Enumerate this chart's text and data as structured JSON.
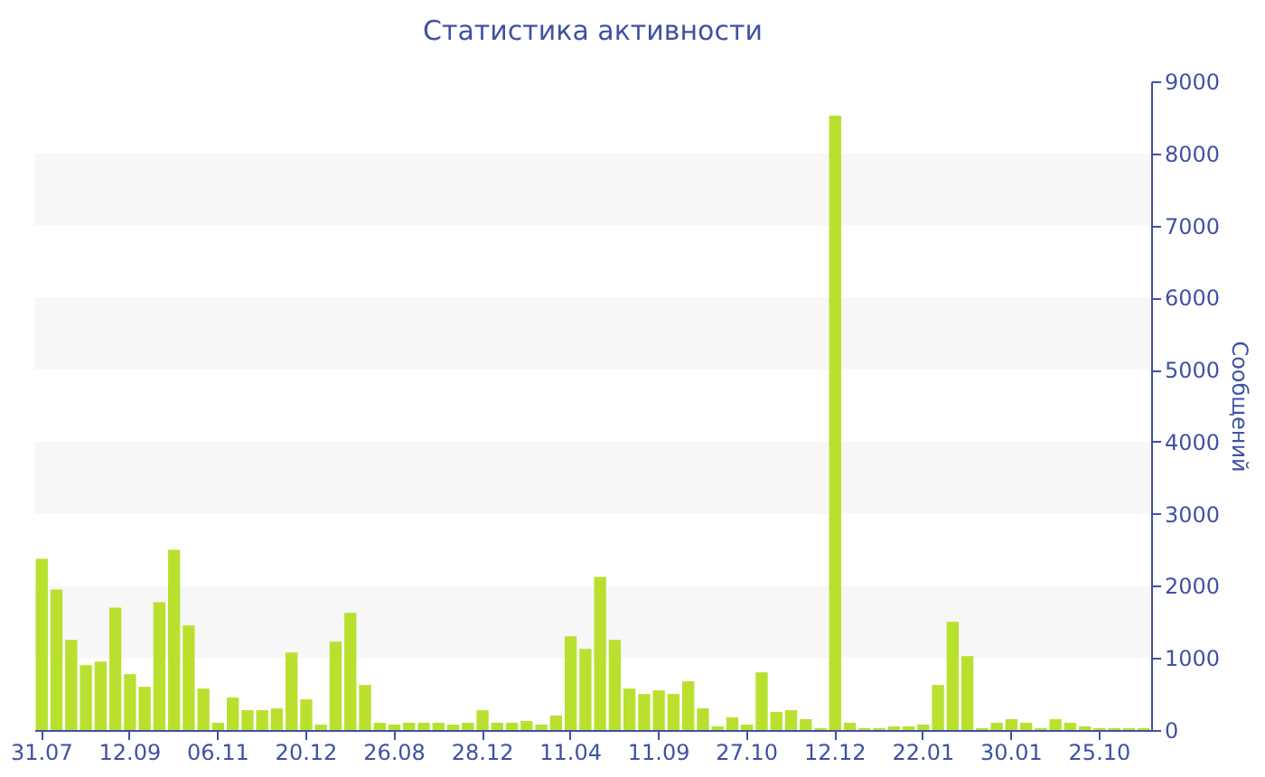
{
  "chart_data": {
    "type": "bar",
    "title": "Статистика активности",
    "ylabel": "Сообщений",
    "categories": [
      "31.07",
      null,
      null,
      null,
      null,
      null,
      "12.09",
      null,
      null,
      null,
      null,
      null,
      "06.11",
      null,
      null,
      null,
      null,
      null,
      "20.12",
      null,
      null,
      null,
      null,
      null,
      "26.08",
      null,
      null,
      null,
      null,
      null,
      "28.12",
      null,
      null,
      null,
      null,
      null,
      "11.04",
      null,
      null,
      null,
      null,
      null,
      "11.09",
      null,
      null,
      null,
      null,
      null,
      "27.10",
      null,
      null,
      null,
      null,
      null,
      "12.12",
      null,
      null,
      null,
      null,
      null,
      "22.01",
      null,
      null,
      null,
      null,
      null,
      "30.01",
      null,
      null,
      null,
      null,
      null,
      "25.10",
      null,
      null,
      null
    ],
    "values": [
      2375,
      1950,
      1250,
      900,
      950,
      1700,
      775,
      600,
      1775,
      2500,
      1450,
      575,
      100,
      450,
      275,
      275,
      300,
      1075,
      425,
      75,
      1225,
      1625,
      625,
      100,
      75,
      100,
      100,
      100,
      75,
      100,
      275,
      100,
      100,
      125,
      75,
      200,
      1300,
      1125,
      2125,
      1250,
      575,
      500,
      550,
      500,
      675,
      300,
      50,
      175,
      75,
      800,
      250,
      275,
      150,
      25,
      8525,
      100,
      25,
      25,
      50,
      50,
      75,
      625,
      1500,
      1025,
      25,
      100,
      150,
      100,
      25,
      150,
      100,
      50,
      25,
      25,
      25,
      25
    ],
    "color": "#b9e02e",
    "ylim": [
      0,
      9000
    ],
    "yticks": [
      0,
      1000,
      2000,
      3000,
      4000,
      5000,
      6000,
      7000,
      8000,
      9000
    ],
    "bands": [
      {
        "axis": "y",
        "from": 1000,
        "to": 2000,
        "color": "#f7f7f7"
      },
      {
        "axis": "y",
        "from": 3000,
        "to": 4000,
        "color": "#f7f7f7"
      },
      {
        "axis": "y",
        "from": 5000,
        "to": 6000,
        "color": "#f7f7f7"
      },
      {
        "axis": "y",
        "from": 7000,
        "to": 8000,
        "color": "#f7f7f7"
      }
    ]
  }
}
